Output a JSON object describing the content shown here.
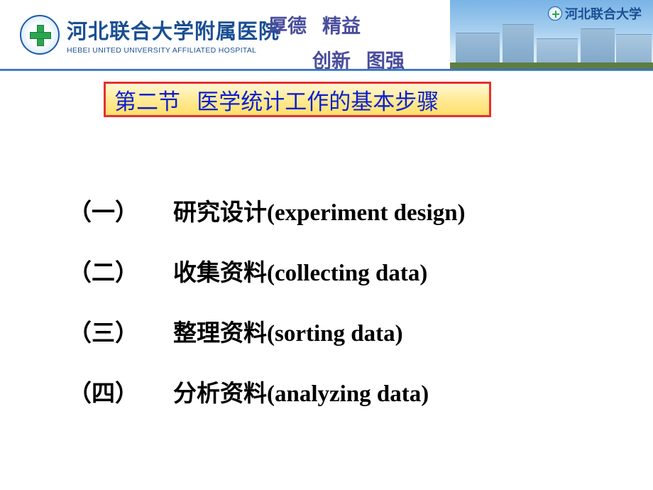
{
  "header": {
    "hospital_cn": "河北联合大学附属医院",
    "hospital_en": "HEBEI UNITED UNIVERSITY AFFILIATED HOSPITAL",
    "slogan": [
      "厚德",
      "精益",
      "创新",
      "图强"
    ],
    "uni_badge": "河北联合大学"
  },
  "title": "第二节   医学统计工作的基本步骤",
  "items": [
    {
      "num": "（一）",
      "cn": "研究设计",
      "en": "(experiment design)"
    },
    {
      "num": "（二）",
      "cn": "收集资料",
      "en": "(collecting data)"
    },
    {
      "num": "（三）",
      "cn": "整理资料",
      "en": "(sorting data)"
    },
    {
      "num": "（四）",
      "cn": "分析资料",
      "en": "(analyzing data)"
    }
  ],
  "colors": {
    "title_border": "#e63030",
    "title_text": "#0b1fd0",
    "slogan_text": "#4a4d9c",
    "brand_blue": "#1a4f94"
  }
}
